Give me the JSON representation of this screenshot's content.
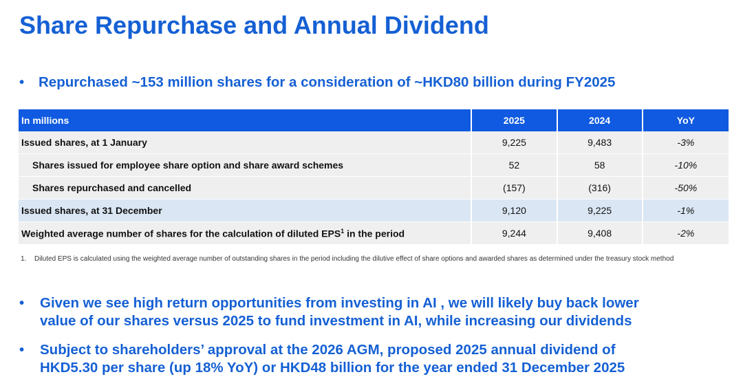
{
  "title": "Share Repurchase and Annual Dividend",
  "bullet_symbol": "•",
  "bullet1": "Repurchased ~153 million shares for a consideration of ~HKD80 billion during FY2025",
  "table": {
    "headers": [
      "In millions",
      "2025",
      "2024",
      "YoY"
    ],
    "rows": [
      {
        "label": "Issued shares, at 1 January",
        "v2025": "9,225",
        "v2024": "9,483",
        "yoy": "-3%"
      },
      {
        "label": "Shares issued for employee share option and share award schemes",
        "v2025": "52",
        "v2024": "58",
        "yoy": "-10%"
      },
      {
        "label": "Shares repurchased and cancelled",
        "v2025": "(157)",
        "v2024": "(316)",
        "yoy": "-50%"
      },
      {
        "label": "Issued shares, at 31 December",
        "v2025": "9,120",
        "v2024": "9,225",
        "yoy": "-1%"
      },
      {
        "label": "Weighted average number of shares for the calculation of diluted EPS",
        "label_sup": "1",
        "label_suffix": " in the period",
        "v2025": "9,244",
        "v2024": "9,408",
        "yoy": "-2%"
      }
    ]
  },
  "footnote": {
    "number": "1.",
    "text": "Diluted EPS is calculated using the weighted average number of outstanding shares in the period including the dilutive effect of share options and awarded shares as determined under the treasury stock method"
  },
  "bullet2": {
    "line1": "Given we see high return opportunities from investing in AI , we will likely buy back lower",
    "line2": "value of our shares versus 2025 to fund investment in AI, while increasing our dividends"
  },
  "bullet3": {
    "line1": "Subject to shareholders’ approval at the 2026 AGM, proposed 2025 annual dividend of",
    "line2": "HKD5.30 per share (up 18% YoY) or HKD48 billion for the year ended 31 December 2025"
  },
  "colors": {
    "accent": "#1560d4",
    "table_header": "#0f5ae0",
    "row_grey": "#efefef",
    "row_blue": "#dae6f3"
  }
}
